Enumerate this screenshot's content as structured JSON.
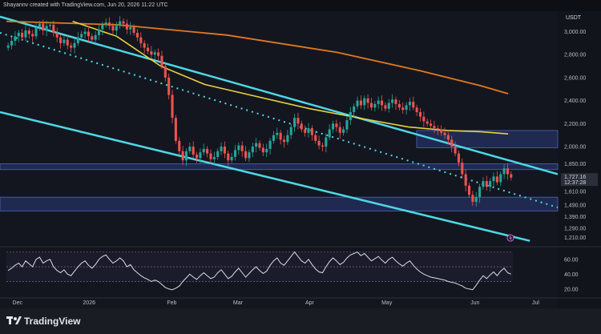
{
  "header": {
    "attribution": "Shayannv created with TradingView.com, Jun 20, 2026 11:22 UTC"
  },
  "price_axis": {
    "currency": "USDT",
    "ticks": [
      "3,000.00",
      "2,800.00",
      "2,600.00",
      "2,400.00",
      "2,200.00",
      "2,000.00",
      "1,850.00",
      "1,610.00",
      "1,490.00",
      "1,390.00",
      "1,290.00",
      "1,210.00"
    ],
    "last_price": "1,727.16",
    "countdown": "12:37:28"
  },
  "rsi_axis": {
    "ticks": [
      "60.00",
      "40.00",
      "20.00"
    ]
  },
  "time_axis": {
    "ticks": [
      "Dec",
      "2026",
      "Feb",
      "Mar",
      "Apr",
      "May",
      "Jun",
      "Jul"
    ]
  },
  "footer": {
    "brand": "TradingView"
  },
  "colors": {
    "up": "#26a69a",
    "down": "#ef5350",
    "channel": "#4dd8e6",
    "ma_long": "#e07a1f",
    "ma_mid": "#e8d33f",
    "zone": "#2a3d7a",
    "rsi": "#d9dce3"
  },
  "chart_data": {
    "type": "candlestick",
    "ylim": [
      1150,
      3150
    ],
    "closes": [
      2880,
      2920,
      2960,
      2990,
      2950,
      3010,
      2980,
      2960,
      3040,
      3070,
      3010,
      3050,
      3060,
      2990,
      2950,
      2900,
      2930,
      2880,
      2860,
      2900,
      2950,
      2980,
      3000,
      2960,
      2930,
      2970,
      3020,
      3060,
      3080,
      3050,
      3010,
      3050,
      3090,
      3070,
      3020,
      3040,
      2990,
      2950,
      2900,
      2860,
      2830,
      2800,
      2820,
      2790,
      2700,
      2600,
      2450,
      2250,
      2050,
      1960,
      1880,
      1960,
      2000,
      1930,
      1900,
      1950,
      1980,
      1940,
      1890,
      1910,
      1960,
      2000,
      1940,
      1880,
      1910,
      1970,
      2010,
      1960,
      1900,
      1950,
      2000,
      2030,
      1990,
      1950,
      1980,
      2050,
      2100,
      2120,
      2060,
      2040,
      2100,
      2170,
      2250,
      2200,
      2150,
      2120,
      2160,
      2100,
      2050,
      2010,
      2000,
      2080,
      2150,
      2200,
      2170,
      2120,
      2150,
      2230,
      2300,
      2350,
      2400,
      2360,
      2420,
      2380,
      2340,
      2370,
      2400,
      2360,
      2330,
      2380,
      2410,
      2370,
      2340,
      2320,
      2360,
      2390,
      2340,
      2300,
      2260,
      2220,
      2200,
      2180,
      2160,
      2150,
      2120,
      2100,
      2060,
      2000,
      1940,
      1860,
      1760,
      1660,
      1580,
      1520,
      1560,
      1650,
      1700,
      1650,
      1700,
      1740,
      1690,
      1760,
      1810,
      1760,
      1730
    ],
    "rsi": [
      45,
      48,
      52,
      55,
      50,
      58,
      54,
      50,
      60,
      63,
      55,
      58,
      60,
      50,
      45,
      42,
      46,
      40,
      38,
      44,
      50,
      55,
      58,
      52,
      48,
      53,
      60,
      64,
      66,
      60,
      55,
      58,
      62,
      58,
      50,
      53,
      46,
      42,
      38,
      35,
      33,
      30,
      32,
      30,
      26,
      22,
      20,
      19,
      21,
      24,
      30,
      35,
      40,
      36,
      33,
      38,
      42,
      38,
      34,
      36,
      42,
      46,
      40,
      34,
      37,
      43,
      48,
      42,
      36,
      41,
      46,
      50,
      45,
      41,
      44,
      52,
      58,
      62,
      55,
      52,
      58,
      64,
      70,
      64,
      58,
      55,
      60,
      53,
      47,
      43,
      42,
      50,
      57,
      62,
      58,
      53,
      56,
      62,
      66,
      68,
      70,
      65,
      68,
      63,
      58,
      61,
      64,
      59,
      55,
      60,
      63,
      58,
      54,
      51,
      55,
      58,
      52,
      47,
      43,
      40,
      38,
      36,
      35,
      34,
      33,
      32,
      30,
      29,
      28,
      26,
      24,
      21,
      20,
      19,
      25,
      32,
      38,
      34,
      39,
      43,
      38,
      44,
      48,
      42,
      40
    ],
    "ma_long": [
      [
        0,
        3090
      ],
      [
        0.2,
        3060
      ],
      [
        0.4,
        2970
      ],
      [
        0.6,
        2820
      ],
      [
        0.75,
        2660
      ],
      [
        0.86,
        2530
      ],
      [
        0.91,
        2460
      ]
    ],
    "ma_mid": [
      [
        0.12,
        3090
      ],
      [
        0.2,
        2960
      ],
      [
        0.28,
        2700
      ],
      [
        0.36,
        2540
      ],
      [
        0.45,
        2440
      ],
      [
        0.55,
        2330
      ],
      [
        0.65,
        2240
      ],
      [
        0.73,
        2170
      ],
      [
        0.8,
        2140
      ],
      [
        0.86,
        2130
      ],
      [
        0.91,
        2110
      ]
    ],
    "zones": [
      [
        1800,
        1850
      ],
      [
        1990,
        2140
      ],
      [
        1440,
        1560
      ]
    ]
  }
}
